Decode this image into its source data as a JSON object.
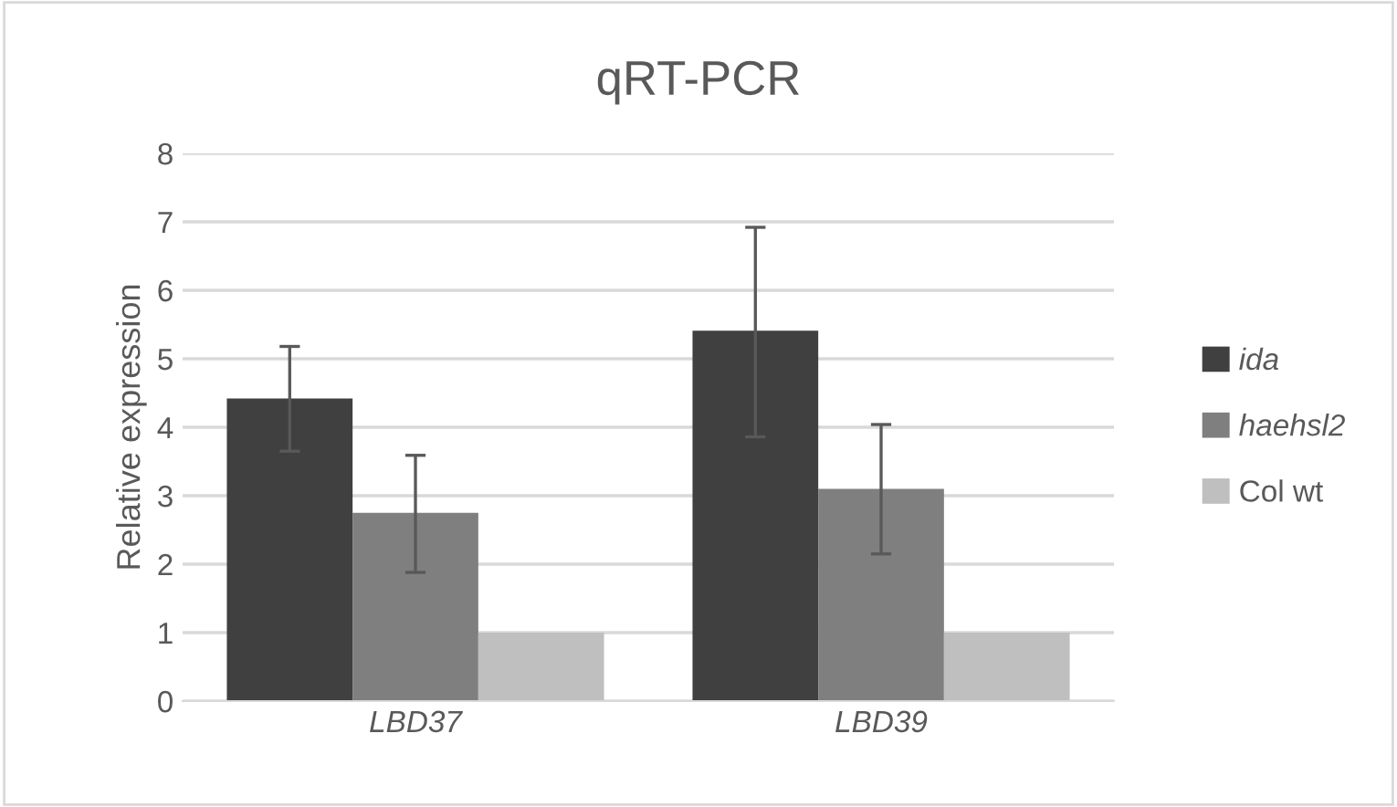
{
  "chart_data": {
    "type": "bar",
    "title": "qRT-PCR",
    "ylabel": "Relative expression",
    "categories": [
      "LBD37",
      "LBD39"
    ],
    "series": [
      {
        "name": "ida",
        "color": "#404040",
        "values": [
          4.42,
          5.41
        ],
        "errors": [
          [
            3.65,
            5.18
          ],
          [
            3.86,
            6.92
          ]
        ]
      },
      {
        "name": "haehsl2",
        "color": "#7f7f7f",
        "values": [
          2.75,
          3.1
        ],
        "errors": [
          [
            1.88,
            3.59
          ],
          [
            2.15,
            4.04
          ]
        ]
      },
      {
        "name": "Col wt",
        "color": "#bfbfbf",
        "values": [
          1.0,
          1.0
        ]
      }
    ],
    "ylim": [
      0,
      8
    ],
    "yticks": [
      0,
      1,
      2,
      3,
      4,
      5,
      6,
      7,
      8
    ],
    "grid": "y",
    "legend": "right"
  }
}
